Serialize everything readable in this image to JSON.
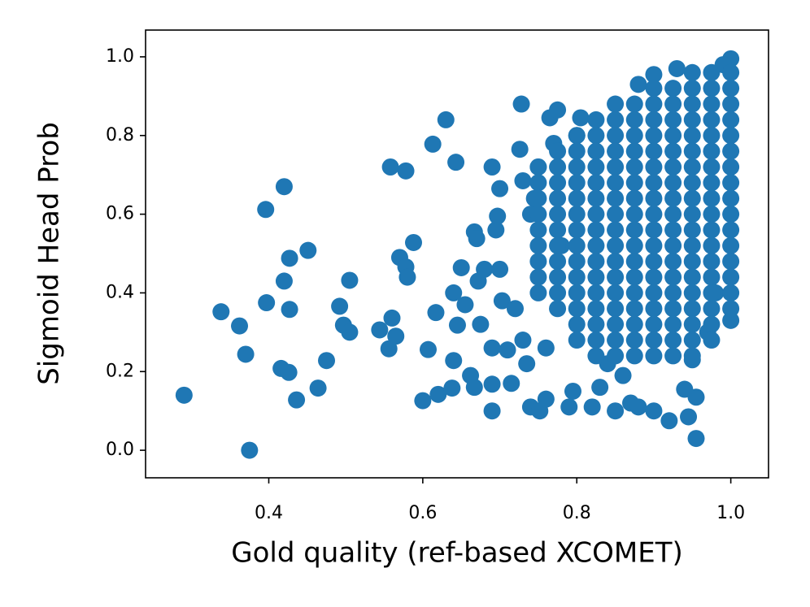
{
  "chart_data": {
    "type": "scatter",
    "x_label": "Gold quality (ref-based XCOMET)",
    "y_label": "Sigmoid Head Prob",
    "color": "#1f77b4",
    "xlim": [
      0.24,
      1.049
    ],
    "ylim": [
      -0.07,
      1.068
    ],
    "xticks": [
      0.4,
      0.6,
      0.8,
      {
        "value": 1,
        "label": "1.0"
      }
    ],
    "yticks": [
      {
        "value": 0,
        "label": "0.0"
      },
      0.2,
      0.4,
      0.6,
      0.8,
      {
        "value": 1,
        "label": "1.0"
      }
    ],
    "x": [
      0.29,
      0.338,
      0.362,
      0.37,
      0.375,
      0.396,
      0.397,
      0.416,
      0.42,
      0.42,
      0.426,
      0.427,
      0.427,
      0.436,
      0.451,
      0.464,
      0.475,
      0.492,
      0.497,
      0.505,
      0.505,
      0.544,
      0.556,
      0.558,
      0.56,
      0.565,
      0.57,
      0.578,
      0.578,
      0.58,
      0.588,
      0.6,
      0.607,
      0.613,
      0.617,
      0.62,
      0.63,
      0.638,
      0.64,
      0.64,
      0.643,
      0.645,
      0.65,
      0.655,
      0.662,
      0.667,
      0.667,
      0.67,
      0.672,
      0.675,
      0.68,
      0.69,
      0.69,
      0.69,
      0.69,
      0.695,
      0.697,
      0.7,
      0.7,
      0.703,
      0.71,
      0.715,
      0.72,
      0.726,
      0.728,
      0.73,
      0.73,
      0.735,
      0.74,
      0.74,
      0.745,
      0.75,
      0.752,
      0.76,
      0.76,
      0.765,
      0.77,
      0.775,
      0.78,
      0.79,
      0.795,
      0.8,
      0.805,
      0.82,
      0.83,
      0.84,
      0.85,
      0.86,
      0.87,
      0.88,
      0.9,
      0.92,
      0.94,
      0.945,
      0.955,
      0.955,
      0.95,
      0.93,
      0.9,
      0.88,
      1.0,
      0.99,
      1.0,
      0.97,
      0.98,
      0.95,
      0.975,
      1.0,
      0.9,
      0.925,
      0.95,
      0.975,
      1.0,
      0.85,
      0.875,
      0.9,
      0.925,
      0.95,
      0.975,
      1.0,
      0.825,
      0.85,
      0.875,
      0.9,
      0.925,
      0.95,
      0.975,
      1.0,
      0.8,
      0.825,
      0.85,
      0.875,
      0.9,
      0.925,
      0.95,
      0.975,
      1.0,
      0.775,
      0.8,
      0.825,
      0.85,
      0.875,
      0.9,
      0.925,
      0.95,
      0.975,
      1.0,
      0.75,
      0.775,
      0.8,
      0.825,
      0.85,
      0.875,
      0.9,
      0.925,
      0.95,
      0.975,
      1.0,
      0.75,
      0.775,
      0.8,
      0.825,
      0.85,
      0.875,
      0.9,
      0.925,
      0.95,
      0.975,
      1.0,
      0.75,
      0.775,
      0.8,
      0.825,
      0.85,
      0.875,
      0.9,
      0.925,
      0.95,
      0.975,
      1.0,
      0.75,
      0.775,
      0.8,
      0.825,
      0.85,
      0.875,
      0.9,
      0.925,
      0.95,
      0.975,
      1.0,
      0.75,
      0.775,
      0.8,
      0.825,
      0.85,
      0.875,
      0.9,
      0.925,
      0.95,
      0.975,
      1.0,
      0.75,
      0.775,
      0.8,
      0.825,
      0.85,
      0.875,
      0.9,
      0.925,
      0.95,
      0.975,
      1.0,
      0.75,
      0.775,
      0.8,
      0.825,
      0.85,
      0.875,
      0.9,
      0.925,
      0.95,
      0.975,
      1.0,
      0.75,
      0.775,
      0.8,
      0.825,
      0.85,
      0.875,
      0.9,
      0.925,
      0.95,
      0.975,
      1.0,
      0.75,
      0.775,
      0.8,
      0.825,
      0.85,
      0.875,
      0.9,
      0.925,
      0.95,
      0.975,
      1.0,
      0.775,
      0.8,
      0.825,
      0.85,
      0.875,
      0.9,
      0.925,
      0.95,
      0.975,
      1.0,
      0.8,
      0.825,
      0.85,
      0.875,
      0.9,
      0.925,
      0.95,
      0.975,
      0.8,
      0.825,
      0.85,
      0.875,
      0.9,
      0.925,
      0.95,
      0.975,
      0.825,
      0.85,
      0.875,
      0.9,
      0.925,
      0.95
    ],
    "values": [
      0.14,
      0.352,
      0.316,
      0.244,
      0.0,
      0.612,
      0.375,
      0.208,
      0.67,
      0.43,
      0.198,
      0.488,
      0.358,
      0.128,
      0.508,
      0.158,
      0.228,
      0.366,
      0.318,
      0.432,
      0.3,
      0.306,
      0.258,
      0.72,
      0.336,
      0.29,
      0.49,
      0.71,
      0.466,
      0.44,
      0.528,
      0.126,
      0.256,
      0.778,
      0.35,
      0.142,
      0.84,
      0.158,
      0.228,
      0.4,
      0.732,
      0.318,
      0.464,
      0.37,
      0.19,
      0.16,
      0.555,
      0.538,
      0.43,
      0.32,
      0.46,
      0.168,
      0.1,
      0.72,
      0.26,
      0.56,
      0.595,
      0.665,
      0.46,
      0.38,
      0.255,
      0.17,
      0.36,
      0.765,
      0.88,
      0.685,
      0.28,
      0.22,
      0.11,
      0.6,
      0.64,
      0.72,
      0.1,
      0.13,
      0.26,
      0.845,
      0.78,
      0.865,
      0.52,
      0.11,
      0.15,
      0.8,
      0.845,
      0.11,
      0.16,
      0.22,
      0.1,
      0.19,
      0.12,
      0.11,
      0.1,
      0.075,
      0.155,
      0.085,
      0.03,
      0.135,
      0.23,
      0.97,
      0.955,
      0.93,
      0.995,
      0.98,
      0.33,
      0.3,
      0.4,
      0.96,
      0.96,
      0.96,
      0.92,
      0.92,
      0.92,
      0.92,
      0.92,
      0.88,
      0.88,
      0.88,
      0.88,
      0.88,
      0.88,
      0.88,
      0.84,
      0.84,
      0.84,
      0.84,
      0.84,
      0.84,
      0.84,
      0.84,
      0.8,
      0.8,
      0.8,
      0.8,
      0.8,
      0.8,
      0.8,
      0.8,
      0.8,
      0.76,
      0.76,
      0.76,
      0.76,
      0.76,
      0.76,
      0.76,
      0.76,
      0.76,
      0.76,
      0.72,
      0.72,
      0.72,
      0.72,
      0.72,
      0.72,
      0.72,
      0.72,
      0.72,
      0.72,
      0.72,
      0.68,
      0.68,
      0.68,
      0.68,
      0.68,
      0.68,
      0.68,
      0.68,
      0.68,
      0.68,
      0.68,
      0.64,
      0.64,
      0.64,
      0.64,
      0.64,
      0.64,
      0.64,
      0.64,
      0.64,
      0.64,
      0.64,
      0.6,
      0.6,
      0.6,
      0.6,
      0.6,
      0.6,
      0.6,
      0.6,
      0.6,
      0.6,
      0.6,
      0.56,
      0.56,
      0.56,
      0.56,
      0.56,
      0.56,
      0.56,
      0.56,
      0.56,
      0.56,
      0.56,
      0.52,
      0.52,
      0.52,
      0.52,
      0.52,
      0.52,
      0.52,
      0.52,
      0.52,
      0.52,
      0.52,
      0.48,
      0.48,
      0.48,
      0.48,
      0.48,
      0.48,
      0.48,
      0.48,
      0.48,
      0.48,
      0.48,
      0.44,
      0.44,
      0.44,
      0.44,
      0.44,
      0.44,
      0.44,
      0.44,
      0.44,
      0.44,
      0.44,
      0.4,
      0.4,
      0.4,
      0.4,
      0.4,
      0.4,
      0.4,
      0.4,
      0.4,
      0.4,
      0.4,
      0.36,
      0.36,
      0.36,
      0.36,
      0.36,
      0.36,
      0.36,
      0.36,
      0.36,
      0.36,
      0.32,
      0.32,
      0.32,
      0.32,
      0.32,
      0.32,
      0.32,
      0.32,
      0.28,
      0.28,
      0.28,
      0.28,
      0.28,
      0.28,
      0.28,
      0.28,
      0.24,
      0.24,
      0.24,
      0.24,
      0.24,
      0.24
    ]
  }
}
